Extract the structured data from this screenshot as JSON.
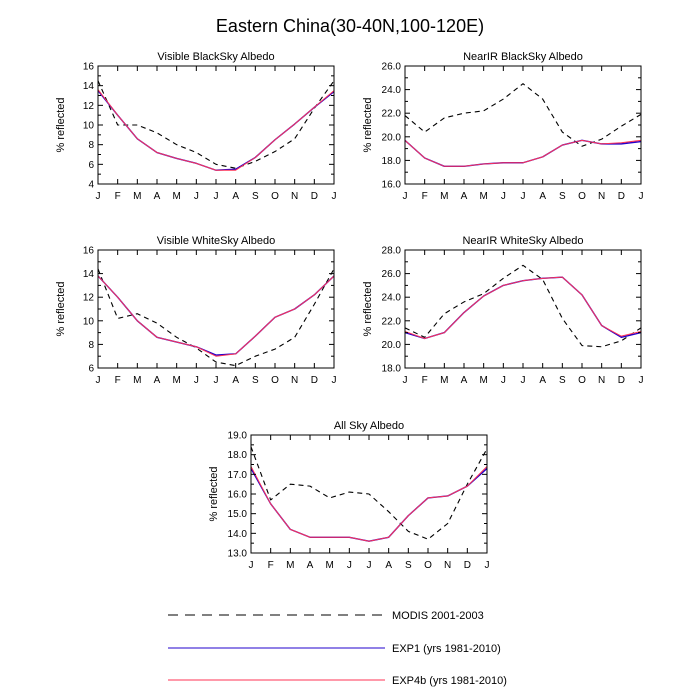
{
  "figure_title": "Eastern China(30-40N,100-120E)",
  "legend": [
    {
      "label": "MODIS 2001-2003",
      "color": "#000000",
      "dash": true
    },
    {
      "label": "EXP1 (yrs 1981-2010)",
      "color": "#2200cc",
      "dash": false
    },
    {
      "label": "EXP4b (yrs 1981-2010)",
      "color": "#ff3355",
      "dash": false
    }
  ],
  "chart_data": [
    {
      "type": "line",
      "title": "Visible BlackSky Albedo",
      "xlabel": "",
      "ylabel": "% reflected",
      "categories": [
        "J",
        "F",
        "M",
        "A",
        "M",
        "J",
        "J",
        "A",
        "S",
        "O",
        "N",
        "D",
        "J"
      ],
      "ylim": [
        4,
        16
      ],
      "yticks": [
        "4",
        "6",
        "8",
        "10",
        "12",
        "14",
        "16"
      ],
      "series": [
        {
          "name": "MODIS 2001-2003",
          "values": [
            14.5,
            10.0,
            10.0,
            9.2,
            8.0,
            7.2,
            6.0,
            5.6,
            6.3,
            7.3,
            8.6,
            11.7,
            14.5
          ]
        },
        {
          "name": "EXP1 (yrs 1981-2010)",
          "values": [
            13.5,
            11.0,
            8.6,
            7.2,
            6.6,
            6.1,
            5.4,
            5.5,
            6.7,
            8.5,
            10.1,
            11.8,
            13.4
          ]
        },
        {
          "name": "EXP4b (yrs 1981-2010)",
          "values": [
            13.6,
            11.0,
            8.6,
            7.2,
            6.6,
            6.1,
            5.4,
            5.4,
            6.7,
            8.5,
            10.1,
            11.8,
            13.5
          ]
        }
      ]
    },
    {
      "type": "line",
      "title": "NearIR BlackSky Albedo",
      "xlabel": "",
      "ylabel": "% reflected",
      "categories": [
        "J",
        "F",
        "M",
        "A",
        "M",
        "J",
        "J",
        "A",
        "S",
        "O",
        "N",
        "D",
        "J"
      ],
      "ylim": [
        16,
        26
      ],
      "yticks": [
        "16.0",
        "18.0",
        "20.0",
        "22.0",
        "24.0",
        "26.0"
      ],
      "series": [
        {
          "name": "MODIS 2001-2003",
          "values": [
            21.8,
            20.4,
            21.6,
            22.0,
            22.2,
            23.2,
            24.5,
            23.2,
            20.4,
            19.2,
            19.8,
            20.9,
            21.9
          ]
        },
        {
          "name": "EXP1 (yrs 1981-2010)",
          "values": [
            19.7,
            18.2,
            17.5,
            17.5,
            17.7,
            17.8,
            17.8,
            18.3,
            19.3,
            19.7,
            19.4,
            19.4,
            19.6
          ]
        },
        {
          "name": "EXP4b (yrs 1981-2010)",
          "values": [
            19.7,
            18.2,
            17.5,
            17.5,
            17.7,
            17.8,
            17.8,
            18.3,
            19.3,
            19.7,
            19.4,
            19.5,
            19.7
          ]
        }
      ]
    },
    {
      "type": "line",
      "title": "Visible WhiteSky Albedo",
      "xlabel": "",
      "ylabel": "% reflected",
      "categories": [
        "J",
        "F",
        "M",
        "A",
        "M",
        "J",
        "J",
        "A",
        "S",
        "O",
        "N",
        "D",
        "J"
      ],
      "ylim": [
        6,
        16
      ],
      "yticks": [
        "6",
        "8",
        "10",
        "12",
        "14",
        "16"
      ],
      "series": [
        {
          "name": "MODIS 2001-2003",
          "values": [
            14.4,
            10.2,
            10.6,
            9.8,
            8.6,
            7.7,
            6.5,
            6.2,
            7.0,
            7.6,
            8.6,
            11.4,
            14.4
          ]
        },
        {
          "name": "EXP1 (yrs 1981-2010)",
          "values": [
            13.8,
            12.0,
            10.0,
            8.6,
            8.2,
            7.8,
            7.1,
            7.2,
            8.7,
            10.3,
            11.0,
            12.2,
            13.8
          ]
        },
        {
          "name": "EXP4b (yrs 1981-2010)",
          "values": [
            13.8,
            12.0,
            10.0,
            8.6,
            8.2,
            7.8,
            7.0,
            7.2,
            8.7,
            10.3,
            11.0,
            12.2,
            13.8
          ]
        }
      ]
    },
    {
      "type": "line",
      "title": "NearIR WhiteSky Albedo",
      "xlabel": "",
      "ylabel": "% reflected",
      "categories": [
        "J",
        "F",
        "M",
        "A",
        "M",
        "J",
        "J",
        "A",
        "S",
        "O",
        "N",
        "D",
        "J"
      ],
      "ylim": [
        18,
        28
      ],
      "yticks": [
        "18.0",
        "20.0",
        "22.0",
        "24.0",
        "26.0",
        "28.0"
      ],
      "series": [
        {
          "name": "MODIS 2001-2003",
          "values": [
            21.4,
            20.6,
            22.6,
            23.6,
            24.3,
            25.6,
            26.7,
            25.5,
            22.2,
            19.9,
            19.8,
            20.3,
            21.4
          ]
        },
        {
          "name": "EXP1 (yrs 1981-2010)",
          "values": [
            21.0,
            20.5,
            21.0,
            22.7,
            24.1,
            25.0,
            25.4,
            25.6,
            25.7,
            24.2,
            21.6,
            20.6,
            21.0
          ]
        },
        {
          "name": "EXP4b (yrs 1981-2010)",
          "values": [
            21.1,
            20.5,
            21.0,
            22.7,
            24.1,
            25.0,
            25.4,
            25.6,
            25.7,
            24.2,
            21.6,
            20.7,
            21.1
          ]
        }
      ]
    },
    {
      "type": "line",
      "title": "All Sky Albedo",
      "xlabel": "",
      "ylabel": "% reflected",
      "categories": [
        "J",
        "F",
        "M",
        "A",
        "M",
        "J",
        "J",
        "A",
        "S",
        "O",
        "N",
        "D",
        "J"
      ],
      "ylim": [
        13,
        19
      ],
      "yticks": [
        "13.0",
        "14.0",
        "15.0",
        "16.0",
        "17.0",
        "18.0",
        "19.0"
      ],
      "series": [
        {
          "name": "MODIS 2001-2003",
          "values": [
            18.4,
            15.7,
            16.5,
            16.4,
            15.8,
            16.1,
            16.0,
            15.1,
            14.1,
            13.7,
            14.5,
            16.5,
            18.3
          ]
        },
        {
          "name": "EXP1 (yrs 1981-2010)",
          "values": [
            17.3,
            15.5,
            14.2,
            13.8,
            13.8,
            13.8,
            13.6,
            13.8,
            14.9,
            15.8,
            15.9,
            16.4,
            17.3
          ]
        },
        {
          "name": "EXP4b (yrs 1981-2010)",
          "values": [
            17.4,
            15.5,
            14.2,
            13.8,
            13.8,
            13.8,
            13.6,
            13.8,
            14.9,
            15.8,
            15.9,
            16.4,
            17.4
          ]
        }
      ]
    }
  ]
}
